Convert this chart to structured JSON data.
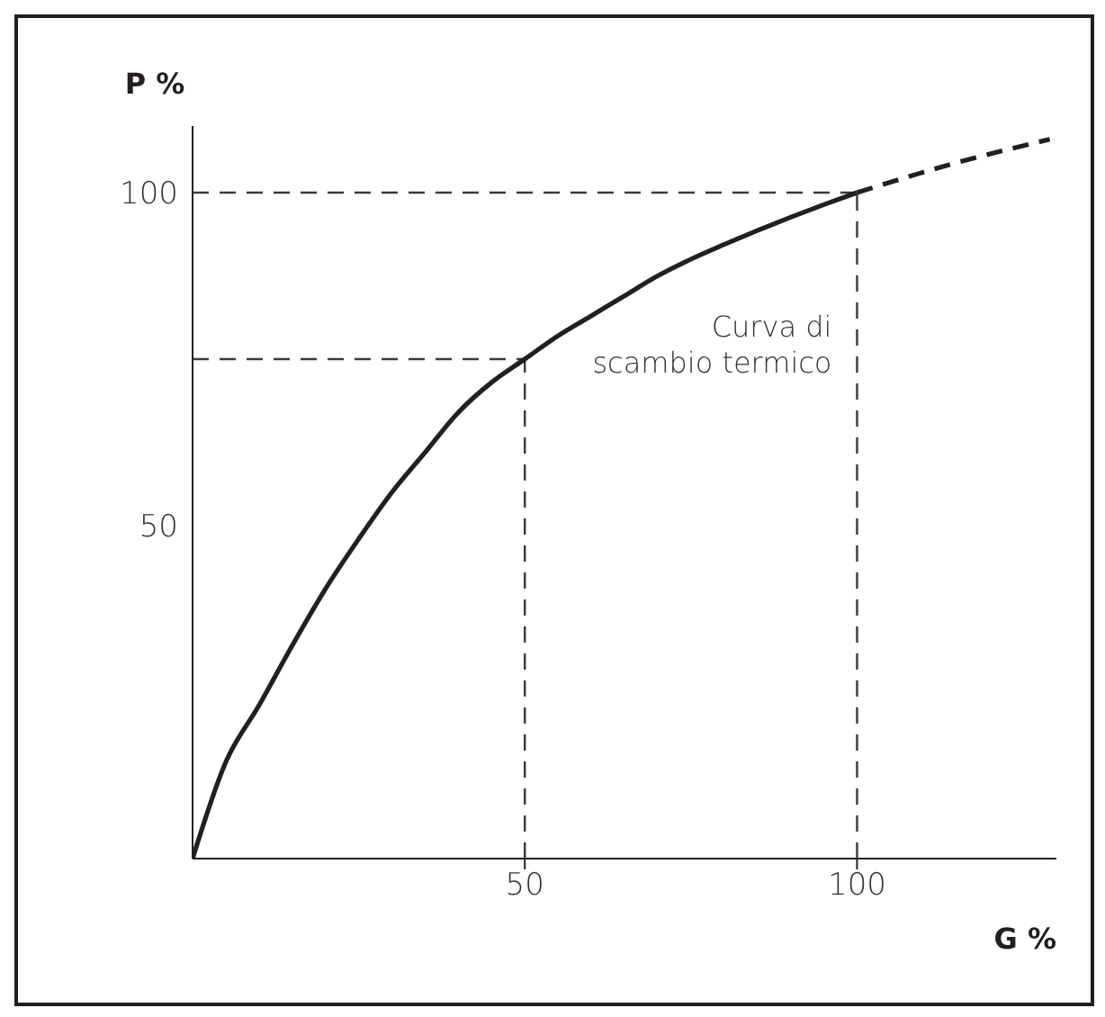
{
  "chart_data": {
    "type": "line",
    "xlabel": "G %",
    "ylabel": "P %",
    "xlim": [
      0,
      130
    ],
    "ylim": [
      0,
      110
    ],
    "xticks": [
      50,
      100
    ],
    "yticks": [
      50,
      100
    ],
    "series": [
      {
        "name": "Curva di scambio termico",
        "color": "#231f20",
        "line_style": "solid",
        "x": [
          0,
          5,
          10,
          15,
          20,
          25,
          30,
          35,
          40,
          45,
          50,
          55,
          60,
          65,
          70,
          75,
          80,
          85,
          90,
          95,
          100
        ],
        "values": [
          0,
          14.5,
          23,
          32,
          40.5,
          48,
          55,
          61,
          67,
          71.5,
          75,
          78.5,
          81.5,
          84.5,
          87.5,
          90,
          92.2,
          94.3,
          96.3,
          98.2,
          100
        ]
      },
      {
        "color": "#231f20",
        "line_style": "dashed",
        "x": [
          100,
          115,
          129
        ],
        "values": [
          100,
          104.5,
          108
        ]
      }
    ],
    "ref_lines": [
      {
        "axis": "x",
        "value": 50,
        "color": "#3a3a3a",
        "line_style": "dashed"
      },
      {
        "axis": "x",
        "value": 100,
        "color": "#3a3a3a",
        "line_style": "dashed"
      },
      {
        "axis": "y",
        "value": 75,
        "color": "#3a3a3a",
        "line_style": "dashed"
      },
      {
        "axis": "y",
        "value": 100,
        "color": "#3a3a3a",
        "line_style": "dashed"
      }
    ],
    "marker": "none"
  }
}
